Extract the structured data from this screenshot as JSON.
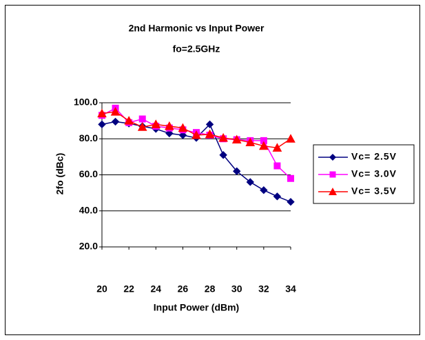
{
  "chart_data": {
    "type": "line",
    "title": "2nd Harmonic vs Input Power",
    "subtitle": "fo=2.5GHz",
    "x_label": "Input Power (dBm)",
    "y_label": "2fo (dBc)",
    "x": [
      20,
      21,
      22,
      23,
      24,
      25,
      26,
      27,
      28,
      29,
      30,
      31,
      32,
      33,
      34
    ],
    "series": [
      {
        "name": "Vc= 2.5V",
        "color": "#000080",
        "marker": "diamond",
        "values": [
          88,
          89.5,
          88.5,
          87,
          85.5,
          83,
          82,
          80.5,
          88,
          71,
          62,
          56,
          51.5,
          48,
          45
        ]
      },
      {
        "name": "Vc= 3.0V",
        "color": "#ff00ff",
        "marker": "square",
        "values": [
          93,
          97,
          89,
          91,
          87,
          86,
          85,
          83.5,
          82,
          80,
          79.5,
          79,
          79,
          65,
          58
        ]
      },
      {
        "name": "Vc= 3.5V",
        "color": "#ff0000",
        "marker": "triangle",
        "values": [
          94,
          95,
          90,
          86.5,
          88,
          87,
          86,
          82,
          82.5,
          80.5,
          79.5,
          78,
          76,
          75,
          80
        ]
      }
    ],
    "xlim": [
      20,
      34
    ],
    "xticks": [
      20,
      22,
      24,
      26,
      28,
      30,
      32,
      34
    ],
    "ylim": [
      20,
      100
    ],
    "yticks": [
      {
        "value": 20,
        "label": "20.0"
      },
      {
        "value": 40,
        "label": "40.0"
      },
      {
        "value": 60,
        "label": "60.0"
      },
      {
        "value": 80,
        "label": "80.0"
      },
      {
        "value": 100,
        "label": "100.0"
      }
    ],
    "grid": true,
    "legend": "right"
  }
}
